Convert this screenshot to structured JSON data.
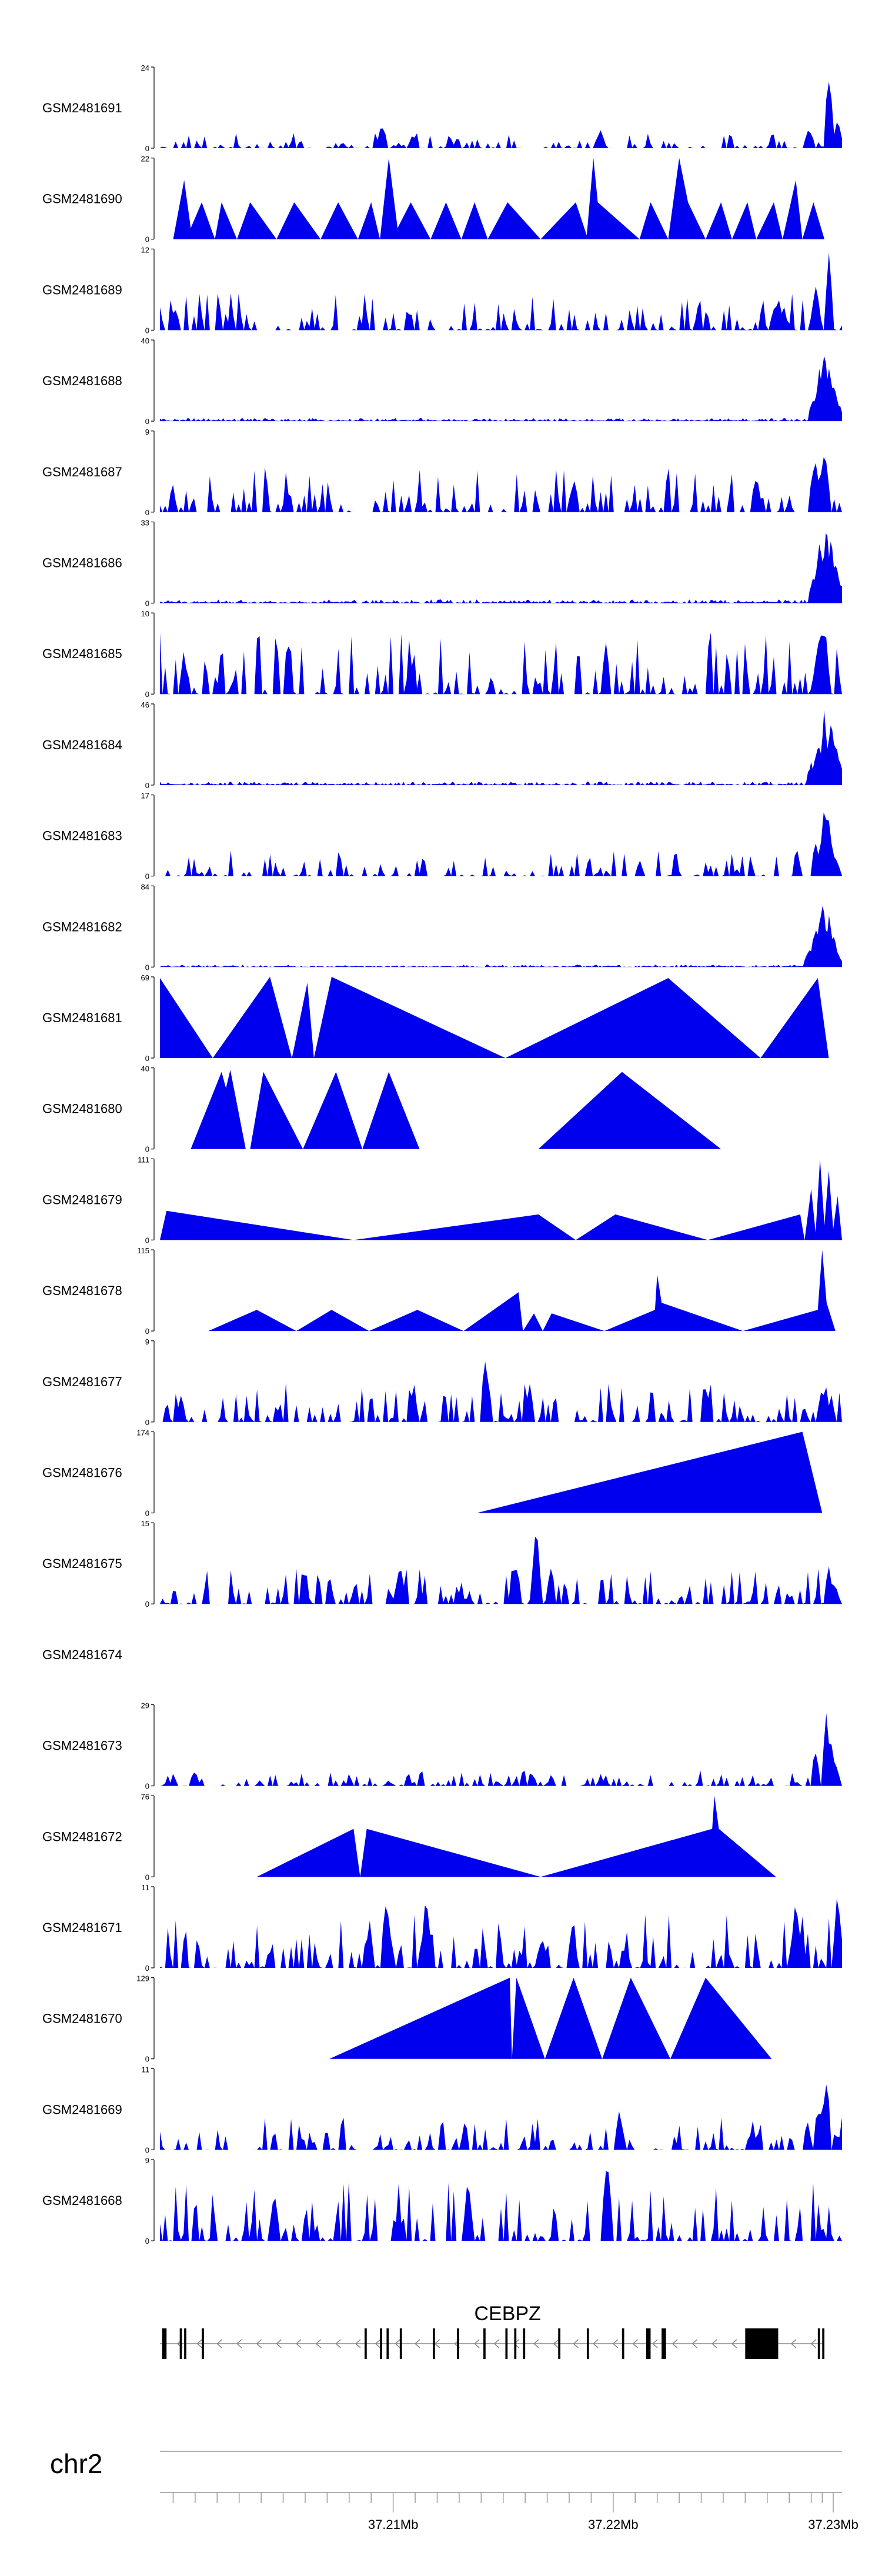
{
  "chart_data": {
    "type": "area",
    "chromosome": "chr2",
    "gene": {
      "name": "CEBPZ",
      "strand": "-"
    },
    "x_axis": {
      "range": [
        37.1994,
        37.2304
      ],
      "ticks": [
        37.21,
        37.22,
        37.23
      ],
      "tick_labels": [
        "37.21Mb",
        "37.22Mb",
        "37.23Mb"
      ],
      "minor_ticks": [
        37.2,
        37.201,
        37.202,
        37.203,
        37.204,
        37.205,
        37.206,
        37.207,
        37.208,
        37.209,
        37.211,
        37.212,
        37.213,
        37.214,
        37.215,
        37.216,
        37.217,
        37.218,
        37.219,
        37.221,
        37.222,
        37.223,
        37.224,
        37.225,
        37.226,
        37.227,
        37.228,
        37.229,
        37.2295
      ]
    },
    "fill_color": "#0000ee",
    "tracks": [
      {
        "name": "GSM2481691",
        "ymax": "24",
        "style": "noisy",
        "base": 2,
        "peaks": [
          [
            37.2298,
            24
          ],
          [
            37.2302,
            9
          ],
          [
            37.2289,
            7
          ],
          [
            37.2095,
            8
          ],
          [
            37.2194,
            6
          ]
        ]
      },
      {
        "name": "GSM2481690",
        "ymax": "22",
        "style": "sparse",
        "points": [
          [
            37.2,
            0
          ],
          [
            37.2005,
            16
          ],
          [
            37.2008,
            3
          ],
          [
            37.2013,
            10
          ],
          [
            37.2019,
            0
          ],
          [
            37.2022,
            10
          ],
          [
            37.2029,
            0
          ],
          [
            37.2035,
            10
          ],
          [
            37.2047,
            0
          ],
          [
            37.2055,
            10
          ],
          [
            37.2067,
            0
          ],
          [
            37.2075,
            10
          ],
          [
            37.2084,
            0
          ],
          [
            37.209,
            10
          ],
          [
            37.2094,
            0
          ],
          [
            37.2098,
            22
          ],
          [
            37.2102,
            3
          ],
          [
            37.2108,
            10
          ],
          [
            37.2117,
            0
          ],
          [
            37.2124,
            10
          ],
          [
            37.2131,
            0
          ],
          [
            37.2137,
            10
          ],
          [
            37.2143,
            0
          ],
          [
            37.2152,
            10
          ],
          [
            37.2167,
            0
          ],
          [
            37.2183,
            10
          ],
          [
            37.2188,
            1
          ],
          [
            37.2191,
            22
          ],
          [
            37.2193,
            10
          ],
          [
            37.2212,
            0
          ],
          [
            37.2217,
            10
          ],
          [
            37.2225,
            0
          ],
          [
            37.223,
            22
          ],
          [
            37.2234,
            10
          ],
          [
            37.2242,
            0
          ],
          [
            37.2249,
            10
          ],
          [
            37.2254,
            0
          ],
          [
            37.2261,
            10
          ],
          [
            37.2265,
            0
          ],
          [
            37.2273,
            10
          ],
          [
            37.2277,
            0
          ],
          [
            37.2283,
            16
          ],
          [
            37.2286,
            0
          ],
          [
            37.2291,
            10
          ],
          [
            37.2296,
            0
          ]
        ]
      },
      {
        "name": "GSM2481689",
        "ymax": "12",
        "style": "noisy",
        "base": 2.5,
        "peaks": [
          [
            37.2298,
            12
          ],
          [
            37.2292,
            8
          ],
          [
            37.2275,
            5
          ],
          [
            37.2001,
            4
          ]
        ]
      },
      {
        "name": "GSM2481688",
        "ymax": "40",
        "style": "noisy_dense",
        "base": 1.5,
        "peaks": [
          [
            37.2291,
            14
          ],
          [
            37.2294,
            30
          ],
          [
            37.2296,
            40
          ],
          [
            37.2298,
            32
          ],
          [
            37.23,
            22
          ],
          [
            37.2302,
            12
          ]
        ]
      },
      {
        "name": "GSM2481687",
        "ymax": "9",
        "style": "noisy",
        "base": 2.5,
        "peaks": [
          [
            37.2296,
            9
          ],
          [
            37.2292,
            7
          ],
          [
            37.2265,
            5
          ],
          [
            37.2182,
            4.5
          ]
        ]
      },
      {
        "name": "GSM2481686",
        "ymax": "33",
        "style": "noisy_dense",
        "base": 1.5,
        "peaks": [
          [
            37.2291,
            12
          ],
          [
            37.2294,
            28
          ],
          [
            37.2297,
            33
          ],
          [
            37.2299,
            30
          ],
          [
            37.2301,
            20
          ],
          [
            37.2303,
            10
          ]
        ]
      },
      {
        "name": "GSM2481685",
        "ymax": "10",
        "style": "noisy",
        "base": 3.5,
        "peaks": [
          [
            37.2296,
            10
          ],
          [
            37.2293,
            7
          ],
          [
            37.2005,
            5
          ]
        ]
      },
      {
        "name": "GSM2481684",
        "ymax": "46",
        "style": "noisy_dense",
        "base": 2,
        "peaks": [
          [
            37.229,
            14
          ],
          [
            37.2293,
            28
          ],
          [
            37.2296,
            46
          ],
          [
            37.2299,
            40
          ],
          [
            37.2301,
            28
          ],
          [
            37.2303,
            14
          ]
        ]
      },
      {
        "name": "GSM2481683",
        "ymax": "17",
        "style": "noisy",
        "base": 2.5,
        "peaks": [
          [
            37.2292,
            8
          ],
          [
            37.2296,
            17
          ],
          [
            37.2298,
            12
          ],
          [
            37.2301,
            5
          ]
        ]
      },
      {
        "name": "GSM2481682",
        "ymax": "84",
        "style": "noisy_dense",
        "base": 2.5,
        "peaks": [
          [
            37.2289,
            20
          ],
          [
            37.2292,
            50
          ],
          [
            37.2295,
            84
          ],
          [
            37.2298,
            60
          ],
          [
            37.23,
            40
          ],
          [
            37.2302,
            18
          ]
        ]
      },
      {
        "name": "GSM2481681",
        "ymax": "69",
        "style": "sparse",
        "points": [
          [
            37.1994,
            68
          ],
          [
            37.2018,
            0
          ],
          [
            37.2044,
            69
          ],
          [
            37.2054,
            0
          ],
          [
            37.2061,
            64
          ],
          [
            37.2064,
            0
          ],
          [
            37.2072,
            69
          ],
          [
            37.2151,
            0
          ],
          [
            37.2225,
            68
          ],
          [
            37.2267,
            0
          ],
          [
            37.2293,
            68
          ],
          [
            37.2298,
            0
          ]
        ]
      },
      {
        "name": "GSM2481680",
        "ymax": "40",
        "style": "sparse",
        "points": [
          [
            37.2008,
            0
          ],
          [
            37.2022,
            38
          ],
          [
            37.2024,
            30
          ],
          [
            37.2026,
            39
          ],
          [
            37.2033,
            0
          ],
          [
            37.2035,
            0
          ],
          [
            37.2041,
            38
          ],
          [
            37.2059,
            0
          ],
          [
            37.2074,
            38
          ],
          [
            37.2086,
            0
          ],
          [
            37.2098,
            38
          ],
          [
            37.2112,
            0
          ],
          [
            37.2166,
            0
          ],
          [
            37.2204,
            38
          ],
          [
            37.2249,
            0
          ]
        ]
      },
      {
        "name": "GSM2481679",
        "ymax": "111",
        "style": "sparse",
        "points": [
          [
            37.1994,
            0
          ],
          [
            37.1997,
            40
          ],
          [
            37.2082,
            0
          ],
          [
            37.2166,
            35
          ],
          [
            37.2183,
            0
          ],
          [
            37.2201,
            35
          ],
          [
            37.2243,
            0
          ],
          [
            37.2285,
            35
          ],
          [
            37.2287,
            0
          ],
          [
            37.229,
            70
          ],
          [
            37.2292,
            10
          ],
          [
            37.2294,
            111
          ],
          [
            37.2296,
            20
          ],
          [
            37.2298,
            95
          ],
          [
            37.23,
            15
          ],
          [
            37.2302,
            60
          ],
          [
            37.2304,
            0
          ]
        ]
      },
      {
        "name": "GSM2481678",
        "ymax": "115",
        "style": "sparse",
        "points": [
          [
            37.2016,
            0
          ],
          [
            37.2038,
            30
          ],
          [
            37.2056,
            0
          ],
          [
            37.2072,
            30
          ],
          [
            37.2089,
            0
          ],
          [
            37.2111,
            30
          ],
          [
            37.2132,
            0
          ],
          [
            37.2157,
            55
          ],
          [
            37.2159,
            0
          ],
          [
            37.2164,
            25
          ],
          [
            37.2168,
            0
          ],
          [
            37.2172,
            25
          ],
          [
            37.2196,
            0
          ],
          [
            37.2219,
            30
          ],
          [
            37.222,
            80
          ],
          [
            37.2222,
            40
          ],
          [
            37.2259,
            0
          ],
          [
            37.2293,
            30
          ],
          [
            37.2295,
            115
          ],
          [
            37.2297,
            40
          ],
          [
            37.2301,
            0
          ]
        ]
      },
      {
        "name": "GSM2481677",
        "ymax": "9",
        "style": "noisy",
        "base": 2,
        "peaks": [
          [
            37.2142,
            9
          ],
          [
            37.2162,
            5
          ],
          [
            37.2109,
            4
          ],
          [
            37.2295,
            4
          ]
        ]
      },
      {
        "name": "GSM2481676",
        "ymax": "174",
        "style": "sparse",
        "points": [
          [
            37.2138,
            0
          ],
          [
            37.2286,
            174
          ],
          [
            37.2295,
            0
          ]
        ]
      },
      {
        "name": "GSM2481675",
        "ymax": "15",
        "style": "noisy",
        "base": 3,
        "peaks": [
          [
            37.2165,
            15
          ],
          [
            37.2103,
            8
          ],
          [
            37.2155,
            8
          ],
          [
            37.2298,
            7
          ]
        ]
      },
      {
        "name": "GSM2481674",
        "ymax": "",
        "style": "empty"
      },
      {
        "name": "GSM2481673",
        "ymax": "29",
        "style": "noisy",
        "base": 2.5,
        "peaks": [
          [
            37.2297,
            29
          ],
          [
            37.2299,
            20
          ],
          [
            37.2292,
            14
          ],
          [
            37.2301,
            9
          ]
        ]
      },
      {
        "name": "GSM2481672",
        "ymax": "76",
        "style": "sparse",
        "points": [
          [
            37.2038,
            0
          ],
          [
            37.2082,
            45
          ],
          [
            37.2085,
            0
          ],
          [
            37.2088,
            45
          ],
          [
            37.2167,
            0
          ],
          [
            37.2245,
            45
          ],
          [
            37.2246,
            76
          ],
          [
            37.2248,
            45
          ],
          [
            37.2274,
            0
          ]
        ]
      },
      {
        "name": "GSM2481671",
        "ymax": "11",
        "style": "noisy",
        "base": 3.5,
        "peaks": [
          [
            37.2097,
            11
          ],
          [
            37.2115,
            11
          ],
          [
            37.2283,
            11
          ],
          [
            37.2302,
            11
          ]
        ]
      },
      {
        "name": "GSM2481670",
        "ymax": "129",
        "style": "sparse",
        "points": [
          [
            37.2071,
            0
          ],
          [
            37.2153,
            129
          ],
          [
            37.2154,
            0
          ],
          [
            37.2156,
            129
          ],
          [
            37.2169,
            0
          ],
          [
            37.2182,
            129
          ],
          [
            37.2195,
            0
          ],
          [
            37.2208,
            129
          ],
          [
            37.2226,
            0
          ],
          [
            37.2242,
            129
          ],
          [
            37.2272,
            0
          ]
        ]
      },
      {
        "name": "GSM2481669",
        "ymax": "11",
        "style": "noisy",
        "base": 2,
        "peaks": [
          [
            37.2297,
            11
          ],
          [
            37.2294,
            7
          ],
          [
            37.2203,
            6
          ]
        ]
      },
      {
        "name": "GSM2481668",
        "ymax": "9",
        "style": "noisy",
        "base": 3,
        "peaks": [
          [
            37.2197,
            9
          ],
          [
            37.2198,
            8
          ],
          [
            37.2046,
            6
          ],
          [
            37.2134,
            7
          ]
        ]
      }
    ],
    "gene_model": {
      "tx_start": 37.1994,
      "tx_end": 37.2296,
      "exons": [
        [
          37.1995,
          37.1997
        ],
        [
          37.2003,
          37.2004
        ],
        [
          37.2005,
          37.2006
        ],
        [
          37.2013,
          37.2014
        ],
        [
          37.2087,
          37.2088
        ],
        [
          37.2094,
          37.2095
        ],
        [
          37.2097,
          37.2098
        ],
        [
          37.2103,
          37.2104
        ],
        [
          37.2118,
          37.2119
        ],
        [
          37.2129,
          37.213
        ],
        [
          37.2141,
          37.2142
        ],
        [
          37.2151,
          37.2152
        ],
        [
          37.2155,
          37.2156
        ],
        [
          37.2159,
          37.216
        ],
        [
          37.2175,
          37.2176
        ],
        [
          37.2188,
          37.2189
        ],
        [
          37.2204,
          37.2205
        ],
        [
          37.2215,
          37.2217
        ],
        [
          37.2222,
          37.2224
        ],
        [
          37.226,
          37.2275
        ],
        [
          37.2293,
          37.2294
        ],
        [
          37.2295,
          37.2296
        ]
      ]
    }
  }
}
